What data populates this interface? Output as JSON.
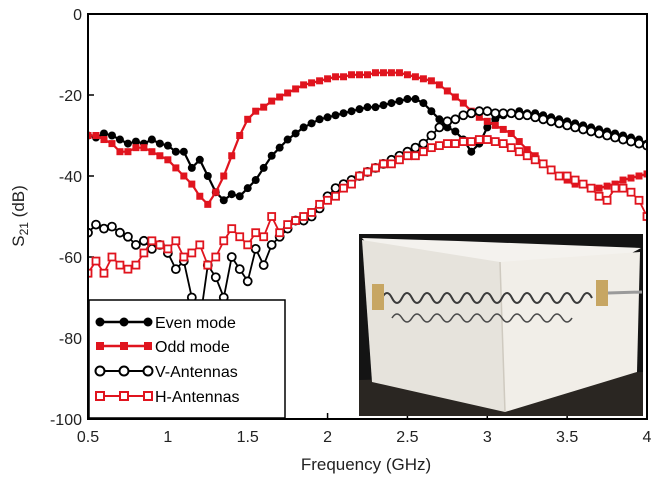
{
  "chart_data": {
    "type": "line",
    "xlabel": "Frequency (GHz)",
    "ylabel_main": "S",
    "ylabel_sub": "21",
    "ylabel_unit": " (dB)",
    "xlim": [
      0.5,
      4
    ],
    "ylim": [
      -100,
      0
    ],
    "xticks": [
      0.5,
      1,
      1.5,
      2,
      2.5,
      3,
      3.5,
      4
    ],
    "xtick_labels": [
      "0.5",
      "1",
      "1.5",
      "2",
      "2.5",
      "3",
      "3.5",
      "4"
    ],
    "yticks": [
      0,
      -20,
      -40,
      -60,
      -80,
      -100
    ],
    "ytick_labels": [
      "0",
      "-20",
      "-40",
      "-60",
      "-80",
      "-100"
    ],
    "grid": false,
    "legend_position": "bottom-left",
    "series": [
      {
        "name": "Even mode",
        "color": "#000000",
        "marker": "filled-circle",
        "x": [
          0.5,
          0.55,
          0.6,
          0.65,
          0.7,
          0.75,
          0.8,
          0.85,
          0.9,
          0.95,
          1.0,
          1.05,
          1.1,
          1.15,
          1.2,
          1.25,
          1.3,
          1.35,
          1.4,
          1.45,
          1.5,
          1.55,
          1.6,
          1.65,
          1.7,
          1.75,
          1.8,
          1.85,
          1.9,
          1.95,
          2.0,
          2.05,
          2.1,
          2.15,
          2.2,
          2.25,
          2.3,
          2.35,
          2.4,
          2.45,
          2.5,
          2.55,
          2.6,
          2.65,
          2.7,
          2.75,
          2.8,
          2.85,
          2.9,
          2.95,
          3.0,
          3.05,
          3.1,
          3.15,
          3.2,
          3.25,
          3.3,
          3.35,
          3.4,
          3.45,
          3.5,
          3.55,
          3.6,
          3.65,
          3.7,
          3.75,
          3.8,
          3.85,
          3.9,
          3.95,
          4.0
        ],
        "y": [
          -30,
          -30.5,
          -29.5,
          -30,
          -31,
          -32,
          -31.5,
          -32,
          -31,
          -32,
          -32.5,
          -34,
          -34,
          -38,
          -36,
          -40,
          -44,
          -46,
          -44.5,
          -45,
          -43,
          -41,
          -38,
          -35,
          -33,
          -31,
          -29.5,
          -28,
          -27,
          -26,
          -25.5,
          -25,
          -24.5,
          -24,
          -23.5,
          -23,
          -23,
          -22.5,
          -22,
          -21.5,
          -21,
          -21,
          -22,
          -24,
          -26,
          -28,
          -29,
          -31,
          -34,
          -32,
          -28,
          -26,
          -25,
          -24.5,
          -24,
          -24.5,
          -24.5,
          -25,
          -25.5,
          -26,
          -26.5,
          -27,
          -27.5,
          -28,
          -28.5,
          -29,
          -29.5,
          -30,
          -30.5,
          -31,
          -32
        ]
      },
      {
        "name": "Odd mode",
        "color": "#e0141e",
        "marker": "filled-square",
        "x": [
          0.5,
          0.55,
          0.6,
          0.65,
          0.7,
          0.75,
          0.8,
          0.85,
          0.9,
          0.95,
          1.0,
          1.05,
          1.1,
          1.15,
          1.2,
          1.25,
          1.3,
          1.35,
          1.4,
          1.45,
          1.5,
          1.55,
          1.6,
          1.65,
          1.7,
          1.75,
          1.8,
          1.85,
          1.9,
          1.95,
          2.0,
          2.05,
          2.1,
          2.15,
          2.2,
          2.25,
          2.3,
          2.35,
          2.4,
          2.45,
          2.5,
          2.55,
          2.6,
          2.65,
          2.7,
          2.75,
          2.8,
          2.85,
          2.9,
          2.95,
          3.0,
          3.05,
          3.1,
          3.15,
          3.2,
          3.25,
          3.3,
          3.35,
          3.4,
          3.45,
          3.5,
          3.55,
          3.6,
          3.65,
          3.7,
          3.75,
          3.8,
          3.85,
          3.9,
          3.95,
          4.0
        ],
        "y": [
          -30,
          -30,
          -31,
          -32,
          -34,
          -34,
          -33,
          -33,
          -34,
          -35,
          -36,
          -38,
          -40,
          -42,
          -45,
          -47,
          -44,
          -40,
          -35,
          -30,
          -26,
          -24,
          -23,
          -21.5,
          -20.5,
          -19.5,
          -18.5,
          -17.5,
          -17,
          -16.5,
          -16,
          -15.5,
          -15.5,
          -15,
          -15,
          -15,
          -14.5,
          -14.5,
          -14.5,
          -14.5,
          -15,
          -15.5,
          -16,
          -16.5,
          -17.5,
          -19,
          -20.5,
          -22,
          -24,
          -25.5,
          -26.5,
          -27.5,
          -28.5,
          -29.5,
          -31.5,
          -33.5,
          -35,
          -37,
          -38.5,
          -40,
          -41,
          -42,
          -42,
          -43,
          -43,
          -42.5,
          -42,
          -41,
          -40.5,
          -40,
          -39.5
        ]
      },
      {
        "name": "V-Antennas",
        "color": "#000000",
        "marker": "open-circle",
        "x": [
          0.5,
          0.55,
          0.6,
          0.65,
          0.7,
          0.75,
          0.8,
          0.85,
          0.9,
          0.95,
          1.0,
          1.05,
          1.1,
          1.15,
          1.2,
          1.25,
          1.3,
          1.35,
          1.4,
          1.45,
          1.5,
          1.55,
          1.6,
          1.65,
          1.7,
          1.75,
          1.8,
          1.85,
          1.9,
          1.95,
          2.0,
          2.05,
          2.1,
          2.15,
          2.2,
          2.25,
          2.3,
          2.35,
          2.4,
          2.45,
          2.5,
          2.55,
          2.6,
          2.65,
          2.7,
          2.75,
          2.8,
          2.85,
          2.9,
          2.95,
          3.0,
          3.05,
          3.1,
          3.15,
          3.2,
          3.25,
          3.3,
          3.35,
          3.4,
          3.45,
          3.5,
          3.55,
          3.6,
          3.65,
          3.7,
          3.75,
          3.8,
          3.85,
          3.9,
          3.95,
          4.0
        ],
        "y": [
          -54,
          -52,
          -53,
          -52.5,
          -54,
          -55,
          -57,
          -56,
          -58,
          -57,
          -59,
          -63,
          -61,
          -70,
          -76,
          -62,
          -65,
          -70,
          -60,
          -63,
          -66,
          -58,
          -62,
          -57,
          -55,
          -53,
          -51,
          -51,
          -50,
          -48,
          -45,
          -43,
          -42,
          -41,
          -40,
          -39,
          -38,
          -37,
          -36,
          -35,
          -34,
          -33,
          -32,
          -30,
          -28,
          -26.5,
          -26,
          -25,
          -24.5,
          -24,
          -24,
          -24.5,
          -24.5,
          -24.5,
          -25,
          -25,
          -25.5,
          -26,
          -26.5,
          -27,
          -27.5,
          -28,
          -28.5,
          -29,
          -29.5,
          -30,
          -30.5,
          -31,
          -31.5,
          -32,
          -32.5
        ]
      },
      {
        "name": "H-Antennas",
        "color": "#e0141e",
        "marker": "open-square",
        "x": [
          0.5,
          0.55,
          0.6,
          0.65,
          0.7,
          0.75,
          0.8,
          0.85,
          0.9,
          0.95,
          1.0,
          1.05,
          1.1,
          1.15,
          1.2,
          1.25,
          1.3,
          1.35,
          1.4,
          1.45,
          1.5,
          1.55,
          1.6,
          1.65,
          1.7,
          1.75,
          1.8,
          1.85,
          1.9,
          1.95,
          2.0,
          2.05,
          2.1,
          2.15,
          2.2,
          2.25,
          2.3,
          2.35,
          2.4,
          2.45,
          2.5,
          2.55,
          2.6,
          2.65,
          2.7,
          2.75,
          2.8,
          2.85,
          2.9,
          2.95,
          3.0,
          3.05,
          3.1,
          3.15,
          3.2,
          3.25,
          3.3,
          3.35,
          3.4,
          3.45,
          3.5,
          3.55,
          3.6,
          3.65,
          3.7,
          3.75,
          3.8,
          3.85,
          3.9,
          3.95,
          4.0
        ],
        "y": [
          -64,
          -61,
          -64,
          -60,
          -62,
          -63,
          -62,
          -59,
          -56,
          -57,
          -58,
          -56,
          -60,
          -59,
          -57,
          -62,
          -60,
          -56,
          -53,
          -55,
          -57,
          -54,
          -55,
          -50,
          -54,
          -52,
          -51,
          -50,
          -49,
          -47,
          -46,
          -45,
          -43,
          -42,
          -40,
          -39,
          -38,
          -37,
          -37,
          -36,
          -35,
          -35,
          -34,
          -33,
          -32.5,
          -32,
          -32,
          -31.5,
          -31.5,
          -31,
          -31,
          -31.5,
          -32,
          -33,
          -34,
          -35,
          -36,
          -37,
          -38.5,
          -40,
          -40,
          -41,
          -42,
          -43,
          -45,
          -46,
          -43,
          -43,
          -44,
          -46,
          -50
        ]
      }
    ]
  },
  "legend": {
    "labels": [
      "Even mode",
      "Odd mode",
      "V-Antennas",
      "H-Antennas"
    ]
  },
  "inset_photo": {
    "description_color_background": "#111111",
    "description_color_box": "#ece9e2"
  }
}
